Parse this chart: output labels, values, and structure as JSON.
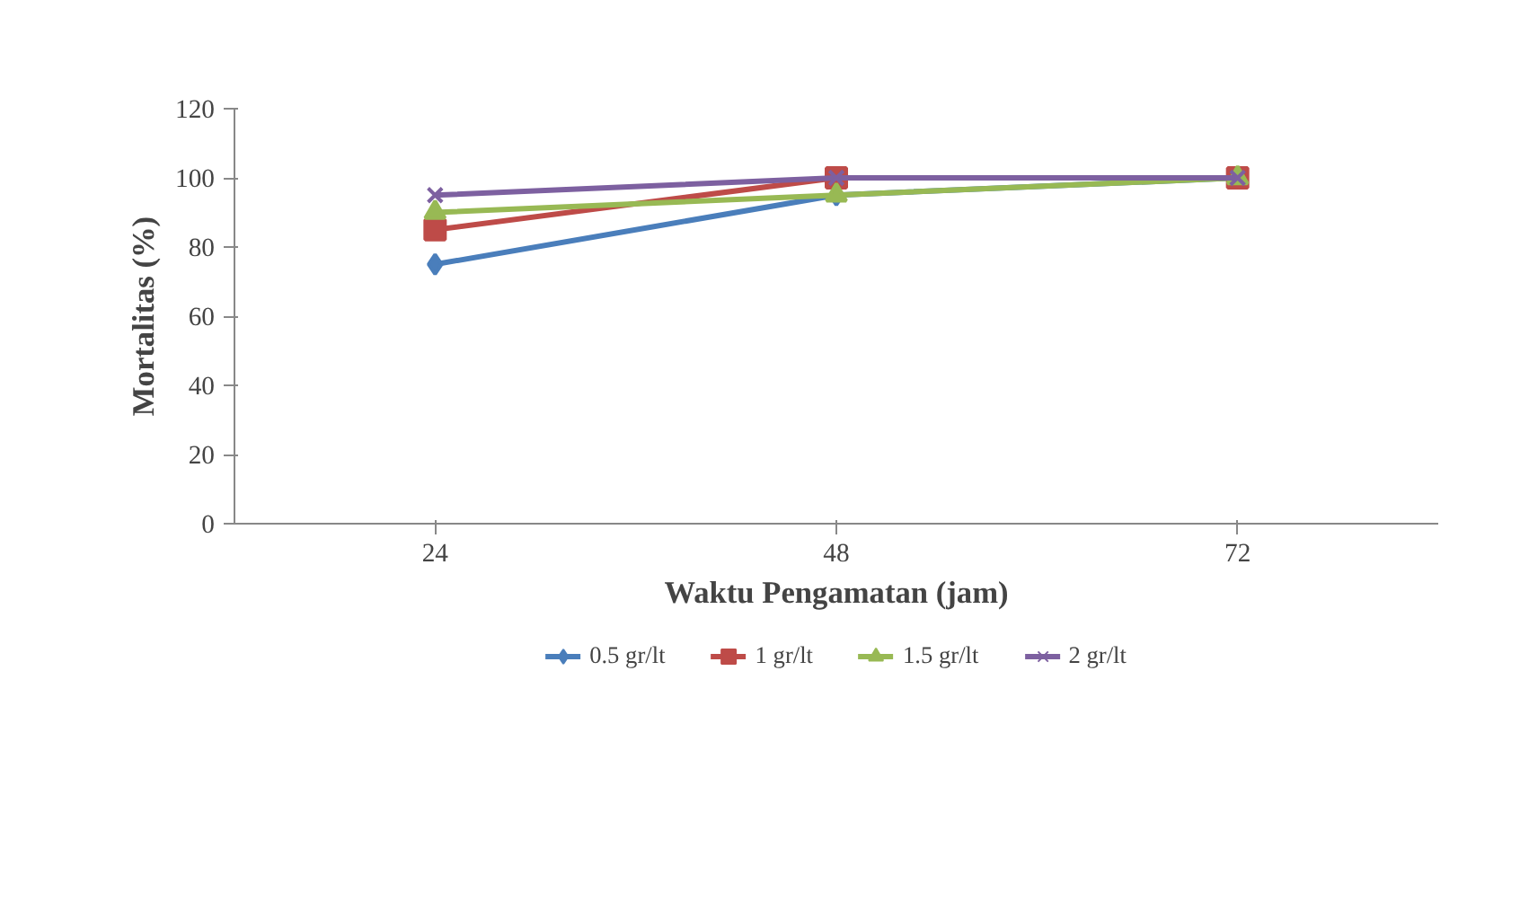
{
  "chart_data": {
    "type": "line",
    "xlabel": "Waktu Pengamatan (jam)",
    "ylabel": "Mortalitas (%)",
    "categories": [
      "24",
      "48",
      "72"
    ],
    "ylim": [
      0,
      120
    ],
    "yticks": [
      0,
      20,
      40,
      60,
      80,
      100,
      120
    ],
    "grid": false,
    "legend": "bottom",
    "series": [
      {
        "name": "0.5 gr/lt",
        "color": "#4a7ebb",
        "marker": "diamond",
        "values": [
          75,
          95,
          100
        ]
      },
      {
        "name": "1 gr/lt",
        "color": "#be4b48",
        "marker": "square",
        "values": [
          85,
          100,
          100
        ]
      },
      {
        "name": "1.5 gr/lt",
        "color": "#98b954",
        "marker": "triangle",
        "values": [
          90,
          95,
          100
        ]
      },
      {
        "name": "2 gr/lt",
        "color": "#7d60a0",
        "marker": "cross",
        "values": [
          95,
          100,
          100
        ]
      }
    ]
  }
}
